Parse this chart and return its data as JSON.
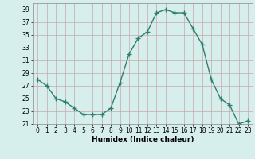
{
  "x": [
    0,
    1,
    2,
    3,
    4,
    5,
    6,
    7,
    8,
    9,
    10,
    11,
    12,
    13,
    14,
    15,
    16,
    17,
    18,
    19,
    20,
    21,
    22,
    23
  ],
  "y": [
    28,
    27,
    25,
    24.5,
    23.5,
    22.5,
    22.5,
    22.5,
    23.5,
    27.5,
    32,
    34.5,
    35.5,
    38.5,
    39,
    38.5,
    38.5,
    36,
    33.5,
    28,
    25,
    24,
    21,
    21.5
  ],
  "line_color": "#2e7d6e",
  "marker": "+",
  "marker_size": 4,
  "marker_lw": 1.0,
  "line_width": 1.0,
  "bg_color": "#d7efec",
  "grid_color": "#c0deda",
  "xlabel": "Humidex (Indice chaleur)",
  "ylim": [
    21,
    40
  ],
  "xlim": [
    -0.5,
    23.5
  ],
  "yticks": [
    21,
    23,
    25,
    27,
    29,
    31,
    33,
    35,
    37,
    39
  ],
  "xticks": [
    0,
    1,
    2,
    3,
    4,
    5,
    6,
    7,
    8,
    9,
    10,
    11,
    12,
    13,
    14,
    15,
    16,
    17,
    18,
    19,
    20,
    21,
    22,
    23
  ],
  "tick_fontsize": 5.5,
  "xlabel_fontsize": 6.5
}
